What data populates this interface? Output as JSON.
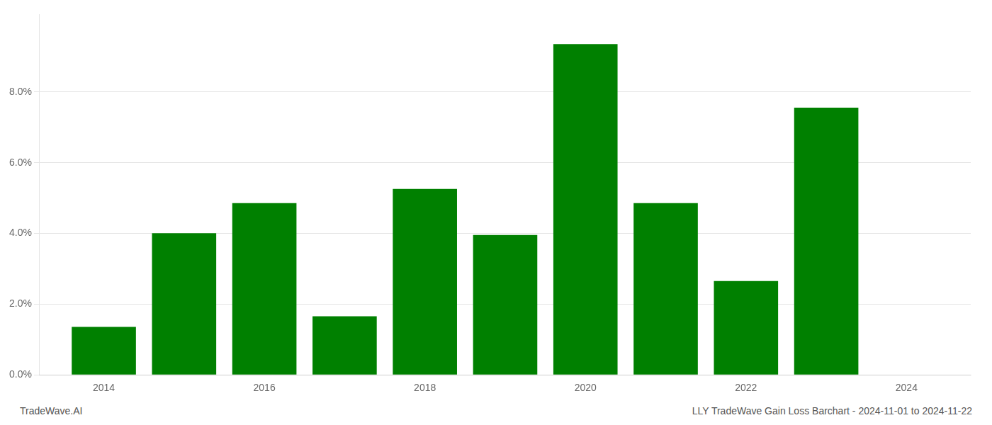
{
  "chart_data": {
    "type": "bar",
    "x": [
      2014,
      2015,
      2016,
      2017,
      2018,
      2019,
      2020,
      2021,
      2022,
      2023
    ],
    "values": [
      0.01355,
      0.04005,
      0.04855,
      0.01655,
      0.05255,
      0.03955,
      0.09355,
      0.04855,
      0.02655,
      0.07555
    ],
    "color": "#008000",
    "xlim": [
      2013.2,
      2024.8
    ],
    "xticks": [
      2014,
      2016,
      2018,
      2020,
      2022,
      2024
    ],
    "ylim": [
      0,
      0.102
    ],
    "yticks": [
      {
        "value": 0.0,
        "label": "0.0%"
      },
      {
        "value": 0.02,
        "label": "2.0%"
      },
      {
        "value": 0.04,
        "label": "4.0%"
      },
      {
        "value": 0.06,
        "label": "6.0%"
      },
      {
        "value": 0.08,
        "label": "8.0%"
      }
    ],
    "grid": "y",
    "annotations": [
      "TradeWave.AI",
      "LLY TradeWave Gain Loss Barchart - 2024-11-01 to 2024-11-22"
    ]
  }
}
